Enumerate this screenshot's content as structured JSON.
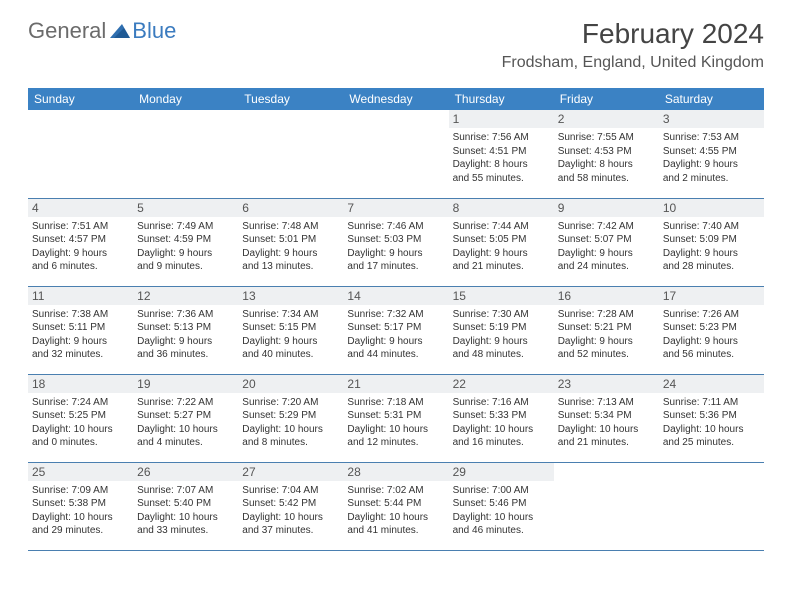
{
  "logo": {
    "word1": "General",
    "word2": "Blue"
  },
  "title": "February 2024",
  "location": "Frodsham, England, United Kingdom",
  "colors": {
    "header_bg": "#3b82c4",
    "header_fg": "#ffffff",
    "daynum_bg": "#eef0f2",
    "border": "#4a7fb0",
    "logo_gray": "#6b6b6b",
    "logo_blue": "#3b7bbf"
  },
  "weekdays": [
    "Sunday",
    "Monday",
    "Tuesday",
    "Wednesday",
    "Thursday",
    "Friday",
    "Saturday"
  ],
  "weeks": [
    [
      null,
      null,
      null,
      null,
      {
        "n": "1",
        "sr": "7:56 AM",
        "ss": "4:51 PM",
        "d1": "Daylight: 8 hours",
        "d2": "and 55 minutes."
      },
      {
        "n": "2",
        "sr": "7:55 AM",
        "ss": "4:53 PM",
        "d1": "Daylight: 8 hours",
        "d2": "and 58 minutes."
      },
      {
        "n": "3",
        "sr": "7:53 AM",
        "ss": "4:55 PM",
        "d1": "Daylight: 9 hours",
        "d2": "and 2 minutes."
      }
    ],
    [
      {
        "n": "4",
        "sr": "7:51 AM",
        "ss": "4:57 PM",
        "d1": "Daylight: 9 hours",
        "d2": "and 6 minutes."
      },
      {
        "n": "5",
        "sr": "7:49 AM",
        "ss": "4:59 PM",
        "d1": "Daylight: 9 hours",
        "d2": "and 9 minutes."
      },
      {
        "n": "6",
        "sr": "7:48 AM",
        "ss": "5:01 PM",
        "d1": "Daylight: 9 hours",
        "d2": "and 13 minutes."
      },
      {
        "n": "7",
        "sr": "7:46 AM",
        "ss": "5:03 PM",
        "d1": "Daylight: 9 hours",
        "d2": "and 17 minutes."
      },
      {
        "n": "8",
        "sr": "7:44 AM",
        "ss": "5:05 PM",
        "d1": "Daylight: 9 hours",
        "d2": "and 21 minutes."
      },
      {
        "n": "9",
        "sr": "7:42 AM",
        "ss": "5:07 PM",
        "d1": "Daylight: 9 hours",
        "d2": "and 24 minutes."
      },
      {
        "n": "10",
        "sr": "7:40 AM",
        "ss": "5:09 PM",
        "d1": "Daylight: 9 hours",
        "d2": "and 28 minutes."
      }
    ],
    [
      {
        "n": "11",
        "sr": "7:38 AM",
        "ss": "5:11 PM",
        "d1": "Daylight: 9 hours",
        "d2": "and 32 minutes."
      },
      {
        "n": "12",
        "sr": "7:36 AM",
        "ss": "5:13 PM",
        "d1": "Daylight: 9 hours",
        "d2": "and 36 minutes."
      },
      {
        "n": "13",
        "sr": "7:34 AM",
        "ss": "5:15 PM",
        "d1": "Daylight: 9 hours",
        "d2": "and 40 minutes."
      },
      {
        "n": "14",
        "sr": "7:32 AM",
        "ss": "5:17 PM",
        "d1": "Daylight: 9 hours",
        "d2": "and 44 minutes."
      },
      {
        "n": "15",
        "sr": "7:30 AM",
        "ss": "5:19 PM",
        "d1": "Daylight: 9 hours",
        "d2": "and 48 minutes."
      },
      {
        "n": "16",
        "sr": "7:28 AM",
        "ss": "5:21 PM",
        "d1": "Daylight: 9 hours",
        "d2": "and 52 minutes."
      },
      {
        "n": "17",
        "sr": "7:26 AM",
        "ss": "5:23 PM",
        "d1": "Daylight: 9 hours",
        "d2": "and 56 minutes."
      }
    ],
    [
      {
        "n": "18",
        "sr": "7:24 AM",
        "ss": "5:25 PM",
        "d1": "Daylight: 10 hours",
        "d2": "and 0 minutes."
      },
      {
        "n": "19",
        "sr": "7:22 AM",
        "ss": "5:27 PM",
        "d1": "Daylight: 10 hours",
        "d2": "and 4 minutes."
      },
      {
        "n": "20",
        "sr": "7:20 AM",
        "ss": "5:29 PM",
        "d1": "Daylight: 10 hours",
        "d2": "and 8 minutes."
      },
      {
        "n": "21",
        "sr": "7:18 AM",
        "ss": "5:31 PM",
        "d1": "Daylight: 10 hours",
        "d2": "and 12 minutes."
      },
      {
        "n": "22",
        "sr": "7:16 AM",
        "ss": "5:33 PM",
        "d1": "Daylight: 10 hours",
        "d2": "and 16 minutes."
      },
      {
        "n": "23",
        "sr": "7:13 AM",
        "ss": "5:34 PM",
        "d1": "Daylight: 10 hours",
        "d2": "and 21 minutes."
      },
      {
        "n": "24",
        "sr": "7:11 AM",
        "ss": "5:36 PM",
        "d1": "Daylight: 10 hours",
        "d2": "and 25 minutes."
      }
    ],
    [
      {
        "n": "25",
        "sr": "7:09 AM",
        "ss": "5:38 PM",
        "d1": "Daylight: 10 hours",
        "d2": "and 29 minutes."
      },
      {
        "n": "26",
        "sr": "7:07 AM",
        "ss": "5:40 PM",
        "d1": "Daylight: 10 hours",
        "d2": "and 33 minutes."
      },
      {
        "n": "27",
        "sr": "7:04 AM",
        "ss": "5:42 PM",
        "d1": "Daylight: 10 hours",
        "d2": "and 37 minutes."
      },
      {
        "n": "28",
        "sr": "7:02 AM",
        "ss": "5:44 PM",
        "d1": "Daylight: 10 hours",
        "d2": "and 41 minutes."
      },
      {
        "n": "29",
        "sr": "7:00 AM",
        "ss": "5:46 PM",
        "d1": "Daylight: 10 hours",
        "d2": "and 46 minutes."
      },
      null,
      null
    ]
  ]
}
